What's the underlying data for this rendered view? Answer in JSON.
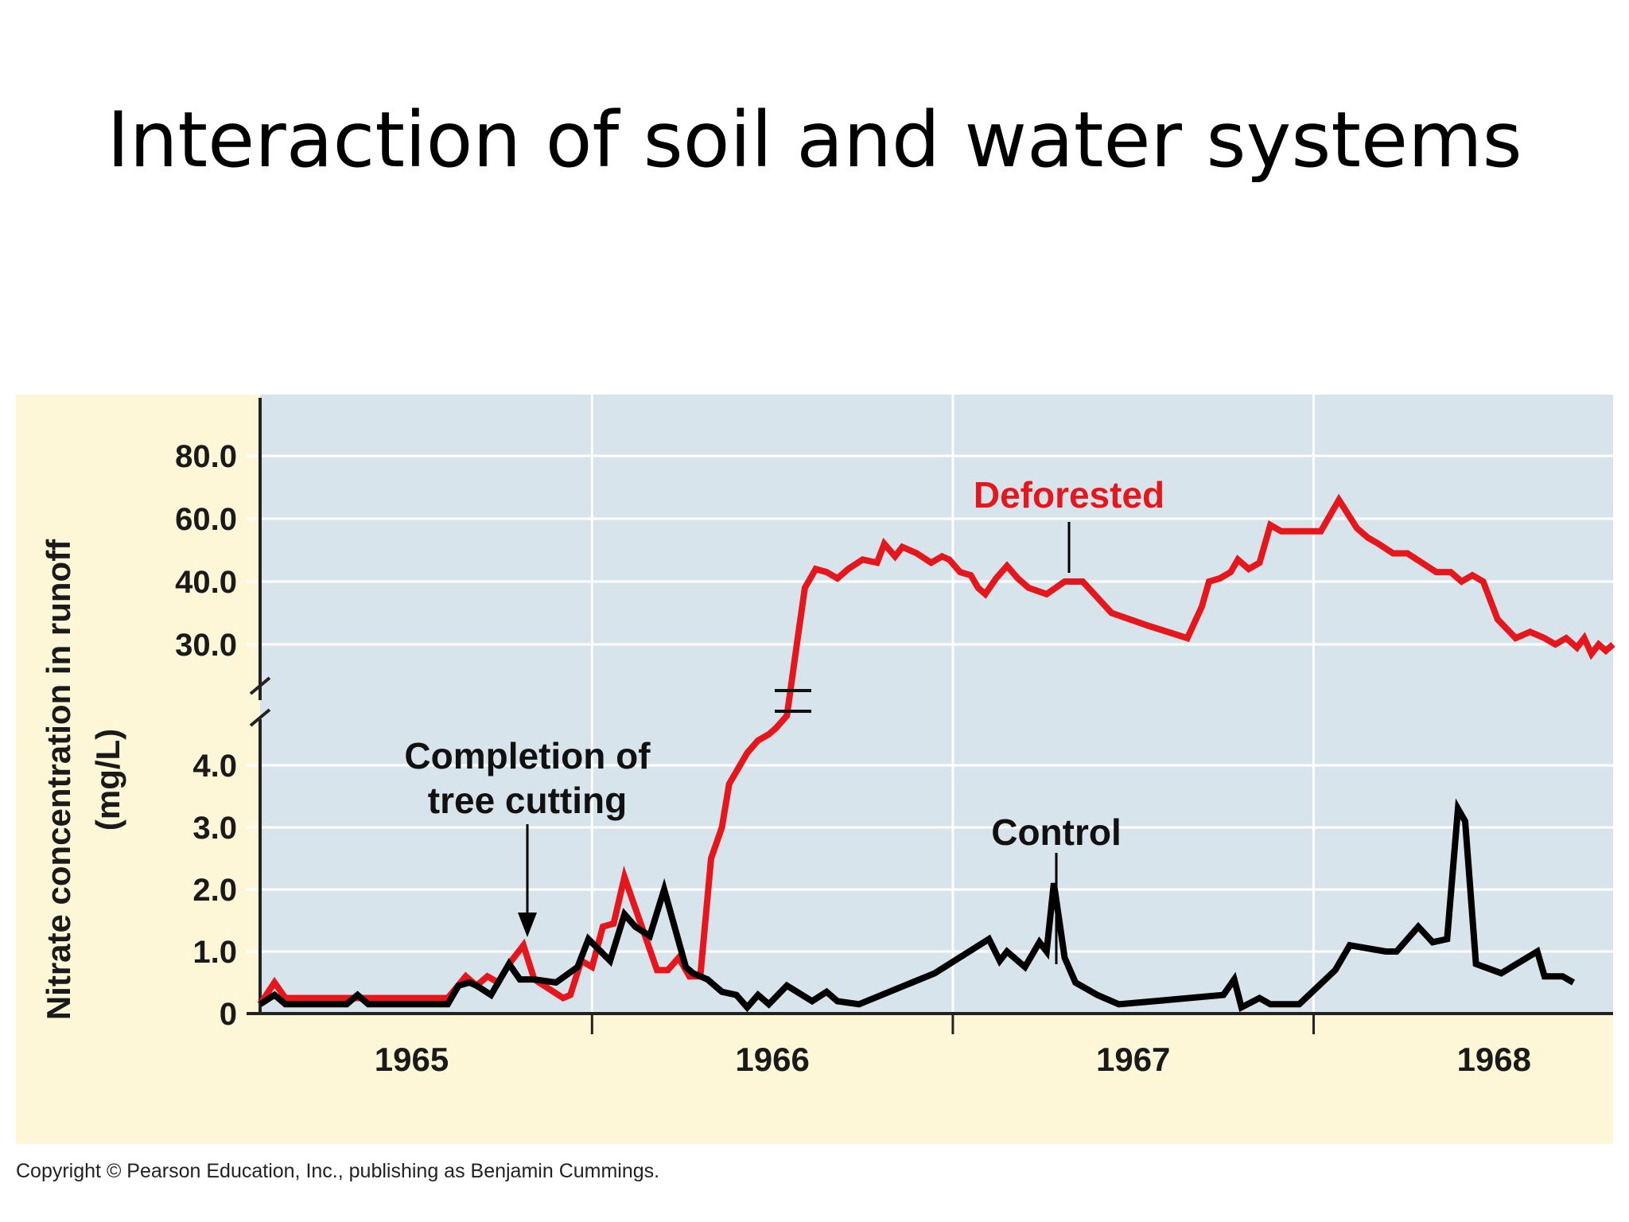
{
  "slide": {
    "title": "Interaction of soil and water systems",
    "copyright": "Copyright © Pearson Education, Inc., publishing as Benjamin Cummings."
  },
  "colors": {
    "plot_background": "#d8e4ec",
    "outer_background": "#fdf7d8",
    "deforested": "#e5161c",
    "control": "#000000"
  },
  "chart_data": {
    "type": "line",
    "title": "",
    "xlabel": "",
    "ylabel": "Nitrate concentration in runoff",
    "ylabel_unit": "(mg/L)",
    "axis_break": true,
    "y_ticks_lower": [
      "0",
      "1.0",
      "2.0",
      "3.0",
      "4.0"
    ],
    "y_ticks_upper": [
      "30.0",
      "40.0",
      "60.0",
      "80.0"
    ],
    "x_ticks": [
      "1965",
      "1966",
      "1967",
      "1968"
    ],
    "xlim": [
      1964.58,
      1968.33
    ],
    "ylim_lower": [
      0,
      4.5
    ],
    "grid": true,
    "annotations": {
      "tree_cutting_line1": "Completion of",
      "tree_cutting_line2": "tree cutting",
      "control_label": "Control",
      "deforested_label": "Deforested"
    },
    "series": [
      {
        "name": "Deforested",
        "x": [
          1964.58,
          1964.62,
          1964.65,
          1964.82,
          1965.1,
          1965.15,
          1965.18,
          1965.21,
          1965.24,
          1965.27,
          1965.31,
          1965.34,
          1965.38,
          1965.42,
          1965.44,
          1965.47,
          1965.5,
          1965.53,
          1965.56,
          1965.59,
          1965.62,
          1965.65,
          1965.68,
          1965.71,
          1965.74,
          1965.77,
          1965.8,
          1965.83,
          1965.86,
          1965.88,
          1965.9,
          1965.93,
          1965.96,
          1965.99,
          1966.01,
          1966.04,
          1966.07,
          1966.09,
          1966.12,
          1966.15,
          1966.18,
          1966.21,
          1966.25,
          1966.29,
          1966.31,
          1966.34,
          1966.36,
          1966.38,
          1966.4,
          1966.44,
          1966.47,
          1966.49,
          1966.52,
          1966.55,
          1966.57,
          1966.59,
          1966.62,
          1966.65,
          1966.68,
          1966.71,
          1966.76,
          1966.81,
          1966.86,
          1966.94,
          1967.04,
          1967.15,
          1967.19,
          1967.21,
          1967.24,
          1967.27,
          1967.29,
          1967.32,
          1967.35,
          1967.38,
          1967.41,
          1967.44,
          1967.47,
          1967.52,
          1967.57,
          1967.62,
          1967.65,
          1967.68,
          1967.72,
          1967.76,
          1967.8,
          1967.84,
          1967.88,
          1967.91,
          1967.94,
          1967.97,
          1968.01,
          1968.06,
          1968.1,
          1968.14,
          1968.17,
          1968.2,
          1968.23,
          1968.25,
          1968.27,
          1968.29,
          1968.31,
          1968.33
        ],
        "y": [
          0.15,
          0.5,
          0.25,
          0.25,
          0.25,
          0.6,
          0.45,
          0.6,
          0.5,
          0.8,
          1.1,
          0.55,
          0.4,
          0.25,
          0.3,
          0.85,
          0.75,
          1.4,
          1.45,
          2.2,
          1.7,
          1.2,
          0.7,
          0.7,
          0.9,
          0.6,
          0.6,
          2.5,
          3.0,
          3.7,
          3.9,
          4.2,
          4.4,
          4.5,
          4.6,
          4.8,
          31,
          39,
          44,
          43,
          41,
          44,
          47,
          46,
          52,
          48,
          51,
          50,
          49,
          46,
          48,
          47,
          43,
          42,
          39,
          38,
          41,
          45,
          41,
          39,
          38,
          40,
          40,
          35,
          33,
          31,
          36,
          40,
          41,
          43,
          47,
          44,
          46,
          58,
          56,
          56,
          56,
          56,
          66,
          57,
          54,
          52,
          49,
          49,
          46,
          43,
          43,
          40,
          42,
          40,
          34,
          31,
          32,
          31,
          30,
          31,
          29.5,
          31,
          28.5,
          30,
          29,
          30
        ],
        "note_y_units": "values below 4.5 on lower scale; values of 30 and above on upper scale (mg/L)"
      },
      {
        "name": "Control",
        "x": [
          1964.58,
          1964.62,
          1964.65,
          1964.82,
          1964.85,
          1964.88,
          1965.1,
          1965.13,
          1965.16,
          1965.18,
          1965.22,
          1965.27,
          1965.3,
          1965.34,
          1965.4,
          1965.46,
          1965.49,
          1965.55,
          1965.59,
          1965.62,
          1965.66,
          1965.7,
          1965.76,
          1965.78,
          1965.82,
          1965.86,
          1965.9,
          1965.93,
          1965.96,
          1965.99,
          1966.04,
          1966.11,
          1966.15,
          1966.18,
          1966.24,
          1966.45,
          1966.6,
          1966.63,
          1966.65,
          1966.7,
          1966.74,
          1966.76,
          1966.78,
          1966.81,
          1966.84,
          1966.9,
          1966.96,
          1967.06,
          1967.25,
          1967.28,
          1967.3,
          1967.35,
          1967.38,
          1967.46,
          1967.56,
          1967.6,
          1967.7,
          1967.73,
          1967.79,
          1967.83,
          1967.87,
          1967.9,
          1967.92,
          1967.95,
          1968.02,
          1968.12,
          1968.14,
          1968.16,
          1968.19,
          1968.22
        ],
        "y": [
          0.15,
          0.3,
          0.15,
          0.15,
          0.3,
          0.15,
          0.15,
          0.45,
          0.5,
          0.45,
          0.3,
          0.8,
          0.55,
          0.55,
          0.5,
          0.75,
          1.2,
          0.85,
          1.6,
          1.4,
          1.25,
          2.0,
          0.75,
          0.65,
          0.55,
          0.35,
          0.3,
          0.1,
          0.3,
          0.15,
          0.45,
          0.2,
          0.35,
          0.2,
          0.15,
          0.65,
          1.2,
          0.85,
          1.0,
          0.75,
          1.15,
          1.0,
          2.1,
          0.9,
          0.5,
          0.3,
          0.15,
          0.2,
          0.3,
          0.55,
          0.1,
          0.25,
          0.15,
          0.15,
          0.7,
          1.1,
          1.0,
          1.0,
          1.4,
          1.15,
          1.2,
          3.3,
          3.1,
          0.8,
          0.65,
          1.0,
          0.6,
          0.6,
          0.6,
          0.5
        ]
      }
    ]
  }
}
